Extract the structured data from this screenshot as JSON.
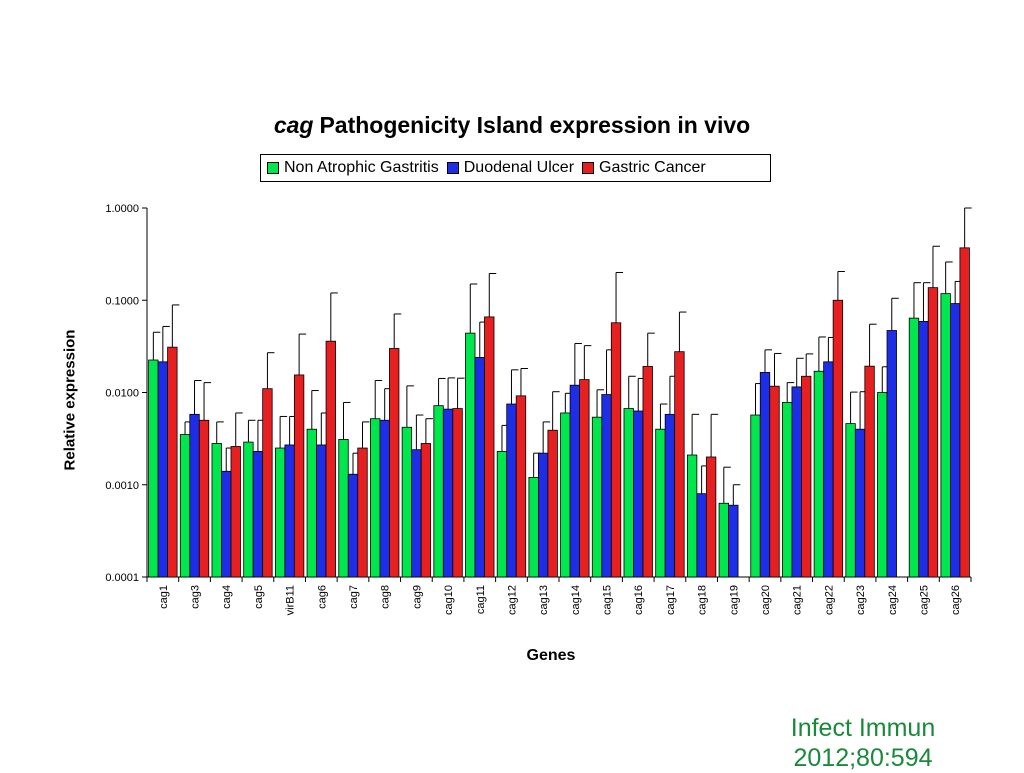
{
  "chart_data": {
    "type": "bar",
    "title_italic": "cag",
    "title_rest": "Pathogenicity Island expression in vivo",
    "xlabel": "Genes",
    "ylabel": "Relative expression",
    "yscale": "log",
    "ylim": [
      0.0001,
      1.0
    ],
    "yticks": [
      "1.0000",
      "0.1000",
      "0.0100",
      "0.0010",
      "0.0001"
    ],
    "ytick_values": [
      1.0,
      0.1,
      0.01,
      0.001,
      0.0001
    ],
    "legend_position": "top",
    "categories": [
      "cag1",
      "cag3",
      "cag4",
      "cag5",
      "virB11",
      "cag6",
      "cag7",
      "cag8",
      "cag9",
      "cag10",
      "cag11",
      "cag12",
      "cag13",
      "cag14",
      "cag15",
      "cag16",
      "cag17",
      "cag18",
      "cag19",
      "cag20",
      "cag21",
      "cag22",
      "cag23",
      "cag24",
      "cag25",
      "cag26"
    ],
    "series": [
      {
        "name": "Non Atrophic Gastritis",
        "color": "#00e64d",
        "values": [
          0.0225,
          0.0035,
          0.0028,
          0.0029,
          0.0025,
          0.004,
          0.0031,
          0.0052,
          0.0042,
          0.0072,
          0.044,
          0.0023,
          0.0012,
          0.006,
          0.0054,
          0.0067,
          0.004,
          0.0021,
          0.00063,
          0.0057,
          0.0078,
          0.017,
          0.0046,
          0.01,
          0.064,
          0.118
        ],
        "err": [
          0.045,
          0.0048,
          0.0048,
          0.005,
          0.0055,
          0.0105,
          0.0078,
          0.0135,
          0.0118,
          0.0142,
          0.15,
          0.0044,
          0.0022,
          0.0098,
          0.0107,
          0.015,
          0.0075,
          0.0058,
          0.00155,
          0.0125,
          0.0128,
          0.04,
          0.0101,
          0.019,
          0.155,
          0.26
        ]
      },
      {
        "name": "Duodenal Ulcer",
        "color": "#1e2ee6",
        "values": [
          0.0215,
          0.0058,
          0.0014,
          0.0023,
          0.0027,
          0.0027,
          0.0013,
          0.005,
          0.0024,
          0.0066,
          0.024,
          0.0075,
          0.0022,
          0.012,
          0.0095,
          0.0063,
          0.0058,
          0.0008,
          0.0006,
          0.0165,
          0.0115,
          0.0215,
          0.004,
          0.047,
          0.059,
          0.092
        ],
        "err": [
          0.052,
          0.0135,
          0.0025,
          0.005,
          0.0055,
          0.006,
          0.0022,
          0.011,
          0.0057,
          0.0144,
          0.058,
          0.0176,
          0.0048,
          0.034,
          0.029,
          0.0142,
          0.015,
          0.0016,
          0.001,
          0.029,
          0.0235,
          0.0395,
          0.0102,
          0.105,
          0.155,
          0.16
        ]
      },
      {
        "name": "Gastric Cancer",
        "color": "#e62020",
        "values": [
          0.031,
          0.005,
          0.0026,
          0.011,
          0.0155,
          0.036,
          0.0025,
          0.03,
          0.0028,
          0.0067,
          0.066,
          0.0092,
          0.0039,
          0.0138,
          0.057,
          0.0192,
          0.0277,
          0.002,
          null,
          0.0117,
          0.015,
          0.1,
          0.0193,
          null,
          0.137,
          0.37
        ],
        "err": [
          0.089,
          0.0128,
          0.006,
          0.027,
          0.043,
          0.12,
          0.0048,
          0.071,
          0.0052,
          0.0143,
          0.195,
          0.0182,
          0.0102,
          0.0322,
          0.2,
          0.044,
          0.0745,
          0.0058,
          null,
          0.0265,
          0.0262,
          0.205,
          0.055,
          null,
          0.385,
          1.0
        ]
      }
    ]
  },
  "citation": {
    "line1": "Infect Immun",
    "line2": "2012;80:594"
  }
}
